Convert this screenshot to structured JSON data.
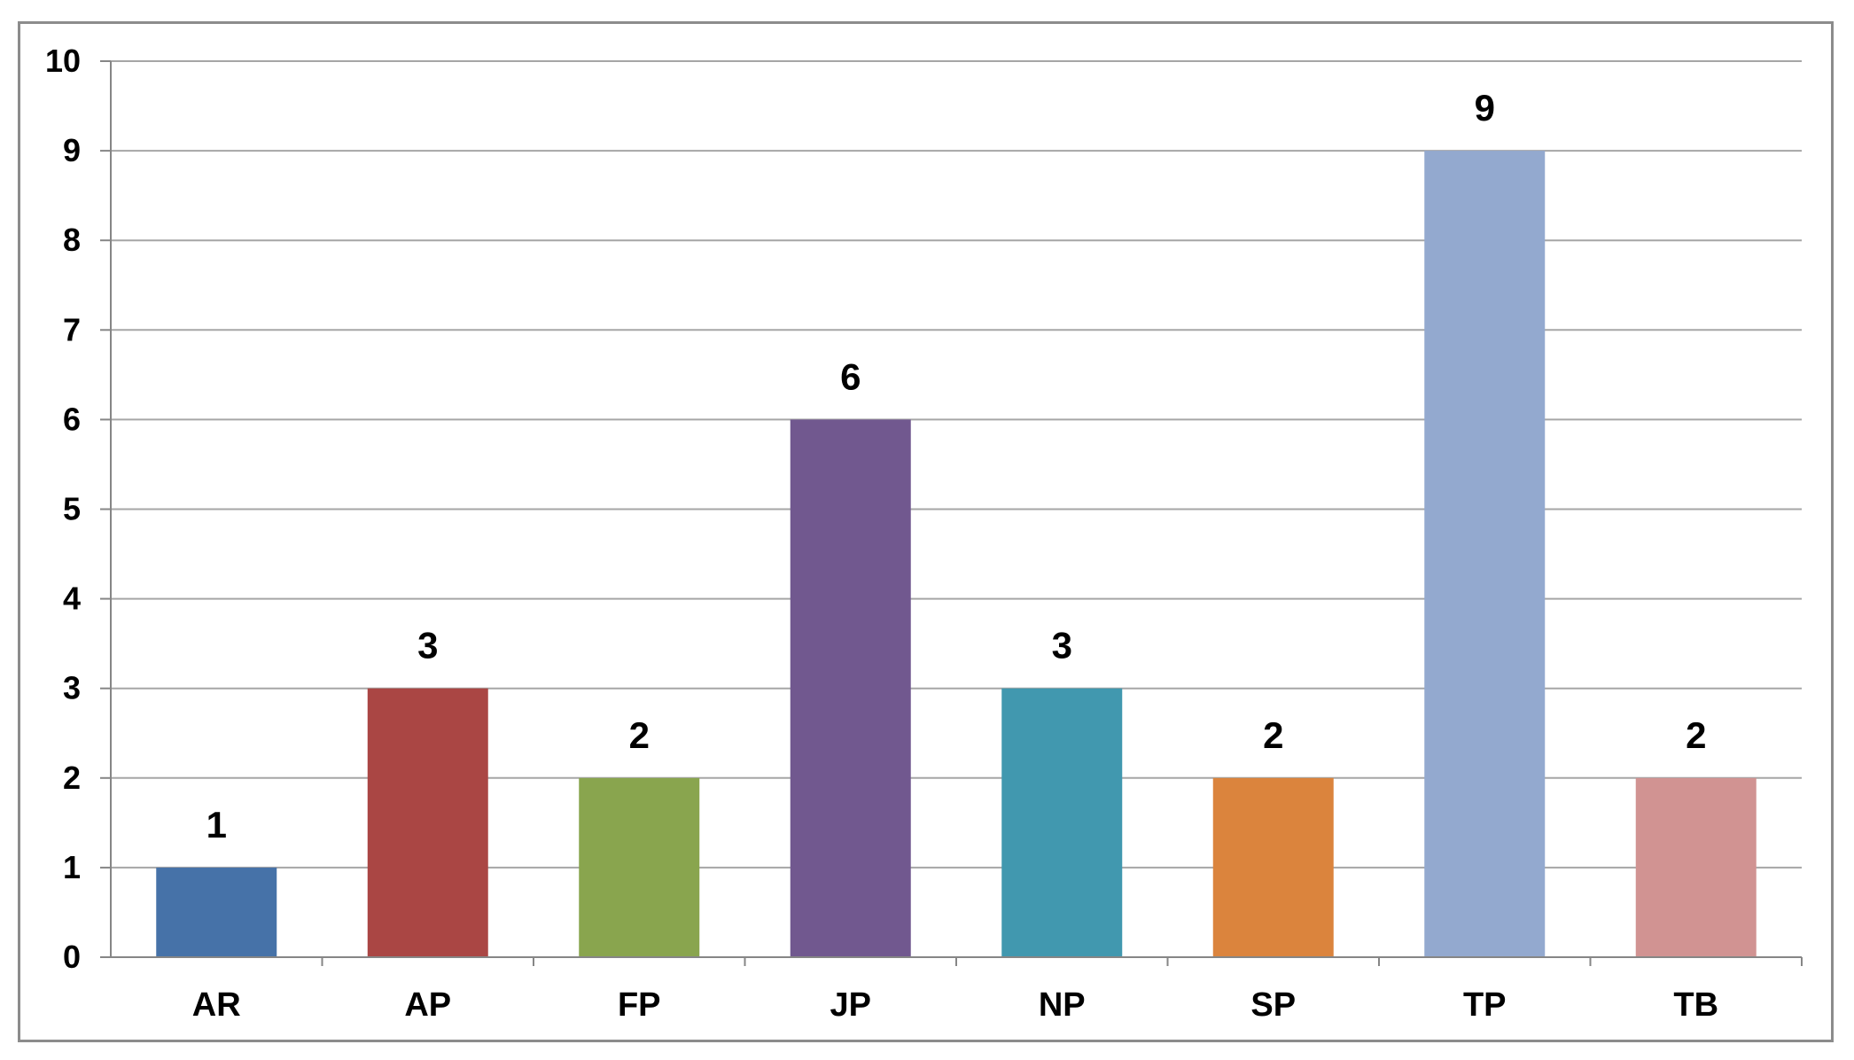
{
  "chart_data": {
    "type": "bar",
    "categories": [
      "AR",
      "AP",
      "FP",
      "JP",
      "NP",
      "SP",
      "TP",
      "TB"
    ],
    "values": [
      1,
      3,
      2,
      6,
      3,
      2,
      9,
      2
    ],
    "data_labels": [
      "1",
      "3",
      "2",
      "6",
      "3",
      "2",
      "9",
      "2"
    ],
    "colors": [
      "#4672a8",
      "#aa4644",
      "#89a54e",
      "#71588f",
      "#4198af",
      "#db843d",
      "#93a9cf",
      "#d19392"
    ],
    "ylim": [
      0,
      10
    ],
    "yticks": [
      0,
      1,
      2,
      3,
      4,
      5,
      6,
      7,
      8,
      9,
      10
    ],
    "ytick_labels": [
      "0",
      "1",
      "2",
      "3",
      "4",
      "5",
      "6",
      "7",
      "8",
      "9",
      "10"
    ],
    "grid": true,
    "legend": "none",
    "title": "",
    "xlabel": "",
    "ylabel": ""
  }
}
